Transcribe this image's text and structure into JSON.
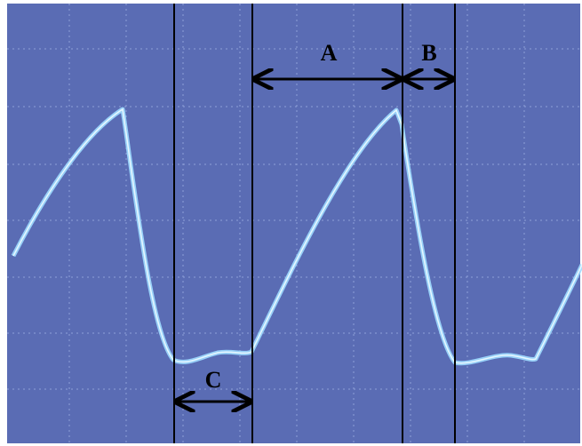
{
  "labels": {
    "a": "A",
    "b": "B",
    "c": "C"
  }
}
